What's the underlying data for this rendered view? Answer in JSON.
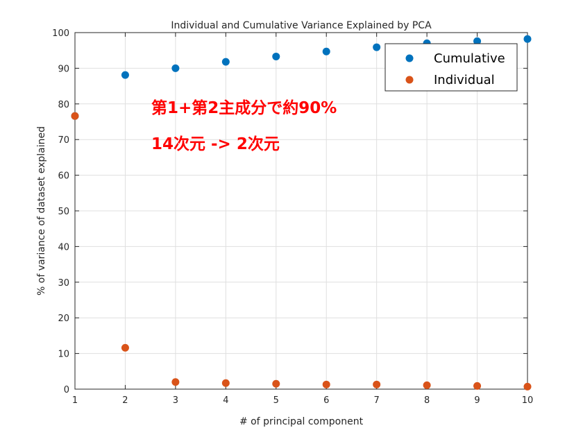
{
  "chart_data": {
    "type": "scatter",
    "title": "Individual and Cumulative Variance Explained by PCA",
    "xlabel": "# of principal component",
    "ylabel": "% of variance of dataset explained",
    "xlim": [
      1,
      10
    ],
    "ylim": [
      0,
      100
    ],
    "x_ticks": [
      1,
      2,
      3,
      4,
      5,
      6,
      7,
      8,
      9,
      10
    ],
    "y_ticks": [
      0,
      10,
      20,
      30,
      40,
      50,
      60,
      70,
      80,
      90,
      100
    ],
    "grid": true,
    "legend_position": "top-right",
    "series": [
      {
        "name": "Cumulative",
        "color": "#0072bd",
        "x": [
          1,
          2,
          3,
          4,
          5,
          6,
          7,
          8,
          9,
          10
        ],
        "y": [
          76.6,
          88.1,
          90.0,
          91.8,
          93.3,
          94.7,
          95.9,
          97.0,
          97.6,
          98.2
        ]
      },
      {
        "name": "Individual",
        "color": "#d95319",
        "x": [
          1,
          2,
          3,
          4,
          5,
          6,
          7,
          8,
          9,
          10
        ],
        "y": [
          76.6,
          11.6,
          2.0,
          1.7,
          1.5,
          1.3,
          1.3,
          1.1,
          0.9,
          0.7
        ]
      }
    ],
    "annotations": [
      {
        "text": "第1+第2主成分で約90%",
        "color": "#ff0000"
      },
      {
        "text": "14次元 -> 2次元",
        "color": "#ff0000"
      }
    ]
  }
}
